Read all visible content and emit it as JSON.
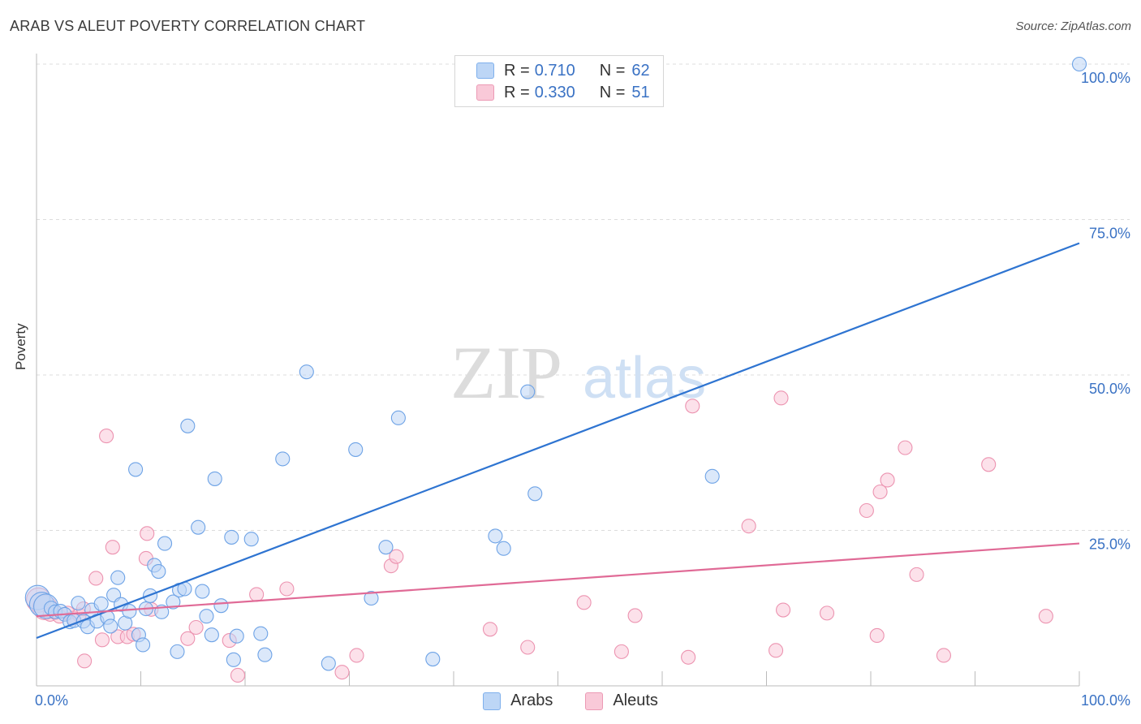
{
  "header": {
    "title": "ARAB VS ALEUT POVERTY CORRELATION CHART",
    "source": "Source: ZipAtlas.com"
  },
  "legend": {
    "r_label": "R =",
    "n_label": "N =",
    "rows": [
      {
        "r": "0.710",
        "n": "62",
        "color": "#7fb0ec",
        "fill": "#bdd6f6"
      },
      {
        "r": "0.330",
        "n": "51",
        "color": "#ec9ab5",
        "fill": "#f9c9d8"
      }
    ]
  },
  "bottom_legend": [
    "Arabs",
    "Aleuts"
  ],
  "chart_data": {
    "type": "scatter",
    "title": "ARAB VS ALEUT POVERTY CORRELATION CHART",
    "xlabel": "",
    "ylabel": "Poverty",
    "xlim": [
      0,
      100
    ],
    "ylim": [
      0,
      100
    ],
    "x_tick_labels": [
      "0.0%",
      "100.0%"
    ],
    "y_tick_labels": [
      "25.0%",
      "50.0%",
      "75.0%",
      "100.0%"
    ],
    "y_ticks": [
      25,
      50,
      75,
      100
    ],
    "grid": true,
    "legend_position": "top-center",
    "watermark": "ZIPatlas",
    "colors": {
      "arabs": "#2e74d1",
      "aleuts": "#e06a96",
      "axis_text": "#3a72c4"
    },
    "series": [
      {
        "name": "Arabs",
        "trend": [
          [
            0,
            7.7
          ],
          [
            100,
            71.2
          ]
        ],
        "points": [
          [
            0.1,
            14.2
          ],
          [
            0.5,
            13.1
          ],
          [
            0.9,
            12.8
          ],
          [
            1.4,
            12.5
          ],
          [
            1.8,
            11.9
          ],
          [
            2.3,
            12.0
          ],
          [
            2.7,
            11.5
          ],
          [
            3.2,
            10.3
          ],
          [
            3.6,
            10.5
          ],
          [
            4.0,
            13.3
          ],
          [
            4.5,
            10.4
          ],
          [
            4.9,
            9.5
          ],
          [
            5.3,
            12.2
          ],
          [
            5.8,
            10.4
          ],
          [
            6.2,
            13.2
          ],
          [
            6.8,
            11.0
          ],
          [
            7.1,
            9.6
          ],
          [
            7.4,
            14.6
          ],
          [
            7.8,
            17.4
          ],
          [
            8.1,
            13.1
          ],
          [
            8.5,
            10.1
          ],
          [
            8.9,
            12.0
          ],
          [
            9.5,
            34.8
          ],
          [
            9.8,
            8.2
          ],
          [
            10.2,
            6.6
          ],
          [
            10.5,
            12.4
          ],
          [
            10.9,
            14.5
          ],
          [
            11.3,
            19.4
          ],
          [
            11.7,
            18.4
          ],
          [
            12.0,
            11.9
          ],
          [
            12.3,
            22.9
          ],
          [
            13.1,
            13.5
          ],
          [
            13.5,
            5.5
          ],
          [
            13.7,
            15.4
          ],
          [
            14.2,
            15.6
          ],
          [
            14.5,
            41.8
          ],
          [
            15.5,
            25.5
          ],
          [
            15.9,
            15.2
          ],
          [
            16.3,
            11.2
          ],
          [
            16.8,
            8.2
          ],
          [
            17.1,
            33.3
          ],
          [
            17.7,
            12.9
          ],
          [
            18.7,
            23.9
          ],
          [
            19.2,
            8.0
          ],
          [
            18.9,
            4.2
          ],
          [
            20.6,
            23.6
          ],
          [
            21.5,
            8.4
          ],
          [
            21.9,
            5.0
          ],
          [
            23.6,
            36.5
          ],
          [
            25.9,
            50.5
          ],
          [
            28.0,
            3.6
          ],
          [
            30.6,
            38.0
          ],
          [
            32.1,
            14.1
          ],
          [
            33.5,
            22.3
          ],
          [
            34.7,
            43.1
          ],
          [
            38.0,
            4.3
          ],
          [
            44.0,
            24.1
          ],
          [
            44.8,
            22.1
          ],
          [
            47.1,
            47.3
          ],
          [
            47.8,
            30.9
          ],
          [
            64.8,
            33.7
          ],
          [
            100,
            100
          ]
        ]
      },
      {
        "name": "Aleuts",
        "trend": [
          [
            0,
            11.2
          ],
          [
            100,
            22.9
          ]
        ],
        "points": [
          [
            0.2,
            13.8
          ],
          [
            0.8,
            12.6
          ],
          [
            1.3,
            11.5
          ],
          [
            1.8,
            11.8
          ],
          [
            2.2,
            11.2
          ],
          [
            3.0,
            11.7
          ],
          [
            3.5,
            10.9
          ],
          [
            4.1,
            11.4
          ],
          [
            4.5,
            12.4
          ],
          [
            4.6,
            4.0
          ],
          [
            5.7,
            17.3
          ],
          [
            6.3,
            7.4
          ],
          [
            6.7,
            40.2
          ],
          [
            7.3,
            22.3
          ],
          [
            7.8,
            7.9
          ],
          [
            8.7,
            7.9
          ],
          [
            9.3,
            8.3
          ],
          [
            10.5,
            20.5
          ],
          [
            10.6,
            24.5
          ],
          [
            11.0,
            12.3
          ],
          [
            14.5,
            7.6
          ],
          [
            15.3,
            9.4
          ],
          [
            18.5,
            7.3
          ],
          [
            19.3,
            1.7
          ],
          [
            21.1,
            14.7
          ],
          [
            24.0,
            15.6
          ],
          [
            29.3,
            2.2
          ],
          [
            30.7,
            4.9
          ],
          [
            34.0,
            19.3
          ],
          [
            34.5,
            20.8
          ],
          [
            43.5,
            9.1
          ],
          [
            47.1,
            6.2
          ],
          [
            52.5,
            13.4
          ],
          [
            56.1,
            5.5
          ],
          [
            57.4,
            11.3
          ],
          [
            62.5,
            4.6
          ],
          [
            62.9,
            45.0
          ],
          [
            68.3,
            25.7
          ],
          [
            71.4,
            46.3
          ],
          [
            70.9,
            5.7
          ],
          [
            71.6,
            12.2
          ],
          [
            75.8,
            11.7
          ],
          [
            79.6,
            28.2
          ],
          [
            80.6,
            8.1
          ],
          [
            80.9,
            31.2
          ],
          [
            81.6,
            33.1
          ],
          [
            83.3,
            38.3
          ],
          [
            84.4,
            17.9
          ],
          [
            87.0,
            4.9
          ],
          [
            91.3,
            35.6
          ],
          [
            96.8,
            11.2
          ]
        ]
      }
    ]
  }
}
